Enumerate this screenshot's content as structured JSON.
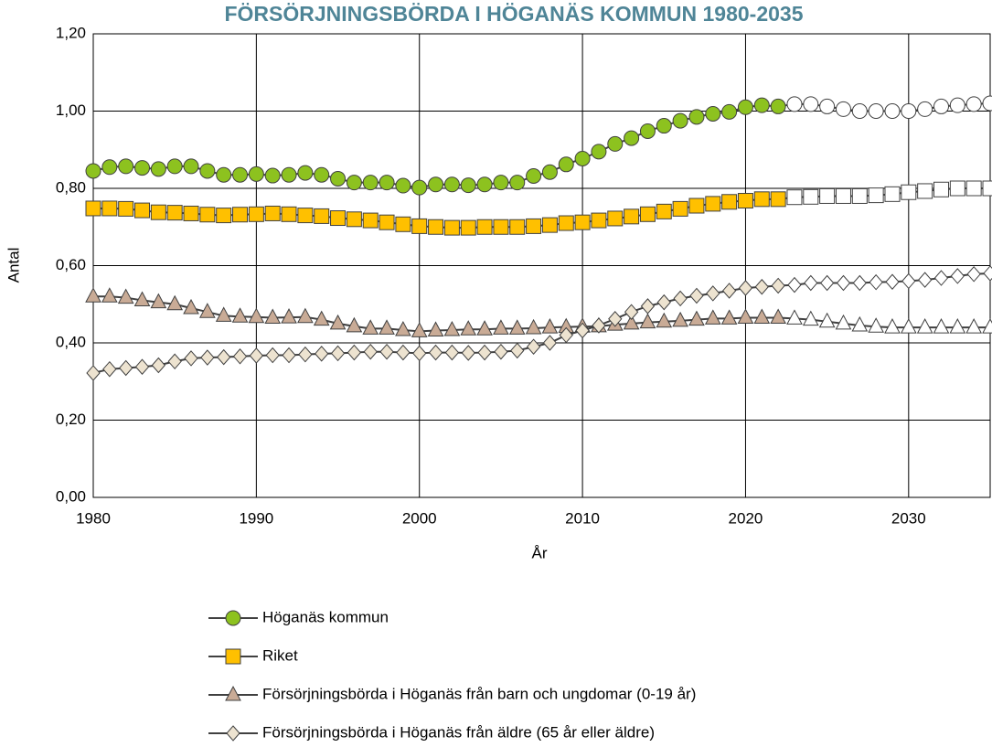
{
  "chart_data": {
    "type": "line",
    "title": "FÖRSÖRJNINGSBÖRDA I HÖGANÄS KOMMUN 1980-2035",
    "x_label": "År",
    "y_label": "Antal",
    "x": [
      1980,
      1981,
      1982,
      1983,
      1984,
      1985,
      1986,
      1987,
      1988,
      1989,
      1990,
      1991,
      1992,
      1993,
      1994,
      1995,
      1996,
      1997,
      1998,
      1999,
      2000,
      2001,
      2002,
      2003,
      2004,
      2005,
      2006,
      2007,
      2008,
      2009,
      2010,
      2011,
      2012,
      2013,
      2014,
      2015,
      2016,
      2017,
      2018,
      2019,
      2020,
      2021,
      2022,
      2023,
      2024,
      2025,
      2026,
      2027,
      2028,
      2029,
      2030,
      2031,
      2032,
      2033,
      2034,
      2035
    ],
    "forecast_from": 2023,
    "forecast_color": "#ffffff",
    "line_color": "#404040",
    "grid": true,
    "xlim": [
      1980,
      2035
    ],
    "xticks": [
      1980,
      1990,
      2000,
      2010,
      2020,
      2030
    ],
    "ylim": [
      0,
      1.2
    ],
    "yticks": [
      {
        "value": 0,
        "label": "0,00"
      },
      {
        "value": 0.2,
        "label": "0,20"
      },
      {
        "value": 0.4,
        "label": "0,40"
      },
      {
        "value": 0.6,
        "label": "0,60"
      },
      {
        "value": 0.8,
        "label": "0,80"
      },
      {
        "value": 1.0,
        "label": "1,00"
      },
      {
        "value": 1.2,
        "label": "1,20"
      }
    ],
    "series": [
      {
        "name": "Höganäs kommun",
        "color": "#8dc21f",
        "marker": "circle",
        "values": [
          0.845,
          0.855,
          0.857,
          0.853,
          0.85,
          0.857,
          0.857,
          0.845,
          0.835,
          0.835,
          0.837,
          0.833,
          0.835,
          0.84,
          0.835,
          0.825,
          0.815,
          0.815,
          0.815,
          0.807,
          0.802,
          0.81,
          0.81,
          0.808,
          0.81,
          0.815,
          0.815,
          0.832,
          0.842,
          0.862,
          0.877,
          0.895,
          0.915,
          0.93,
          0.948,
          0.962,
          0.975,
          0.985,
          0.993,
          0.998,
          1.01,
          1.015,
          1.012,
          1.018,
          1.018,
          1.012,
          1.005,
          1.0,
          1.0,
          1.0,
          1.0,
          1.005,
          1.012,
          1.015,
          1.018,
          1.02
        ]
      },
      {
        "name": "Riket",
        "color": "#ffc000",
        "marker": "square",
        "values": [
          0.748,
          0.748,
          0.747,
          0.743,
          0.738,
          0.737,
          0.735,
          0.732,
          0.73,
          0.732,
          0.733,
          0.735,
          0.733,
          0.73,
          0.728,
          0.723,
          0.72,
          0.717,
          0.712,
          0.707,
          0.702,
          0.7,
          0.698,
          0.698,
          0.7,
          0.7,
          0.7,
          0.702,
          0.705,
          0.71,
          0.712,
          0.717,
          0.722,
          0.727,
          0.733,
          0.74,
          0.747,
          0.755,
          0.76,
          0.765,
          0.768,
          0.772,
          0.772,
          0.777,
          0.778,
          0.78,
          0.78,
          0.78,
          0.782,
          0.785,
          0.79,
          0.793,
          0.797,
          0.8,
          0.8,
          0.8
        ]
      },
      {
        "name": "Försörjningsbörda i Höganäs från barn och ungdomar (0-19 år)",
        "color": "#c9ab96",
        "marker": "triangle",
        "values": [
          0.52,
          0.52,
          0.517,
          0.51,
          0.505,
          0.5,
          0.49,
          0.48,
          0.47,
          0.468,
          0.467,
          0.465,
          0.466,
          0.467,
          0.46,
          0.45,
          0.443,
          0.437,
          0.437,
          0.433,
          0.43,
          0.432,
          0.433,
          0.435,
          0.435,
          0.437,
          0.437,
          0.438,
          0.44,
          0.441,
          0.442,
          0.443,
          0.447,
          0.45,
          0.453,
          0.455,
          0.457,
          0.46,
          0.463,
          0.463,
          0.465,
          0.465,
          0.465,
          0.463,
          0.46,
          0.455,
          0.45,
          0.445,
          0.442,
          0.44,
          0.44,
          0.44,
          0.44,
          0.44,
          0.44,
          0.44
        ]
      },
      {
        "name": "Försörjningsbörda i Höganäs från äldre (65 år eller äldre)",
        "color": "#ede3d0",
        "marker": "diamond",
        "values": [
          0.322,
          0.332,
          0.335,
          0.338,
          0.342,
          0.352,
          0.36,
          0.362,
          0.363,
          0.365,
          0.367,
          0.368,
          0.368,
          0.37,
          0.372,
          0.373,
          0.375,
          0.377,
          0.377,
          0.375,
          0.373,
          0.375,
          0.375,
          0.374,
          0.375,
          0.377,
          0.38,
          0.39,
          0.4,
          0.42,
          0.432,
          0.445,
          0.462,
          0.48,
          0.495,
          0.505,
          0.515,
          0.522,
          0.528,
          0.535,
          0.542,
          0.545,
          0.548,
          0.55,
          0.555,
          0.555,
          0.555,
          0.555,
          0.557,
          0.558,
          0.56,
          0.563,
          0.568,
          0.573,
          0.578,
          0.58
        ]
      }
    ]
  }
}
